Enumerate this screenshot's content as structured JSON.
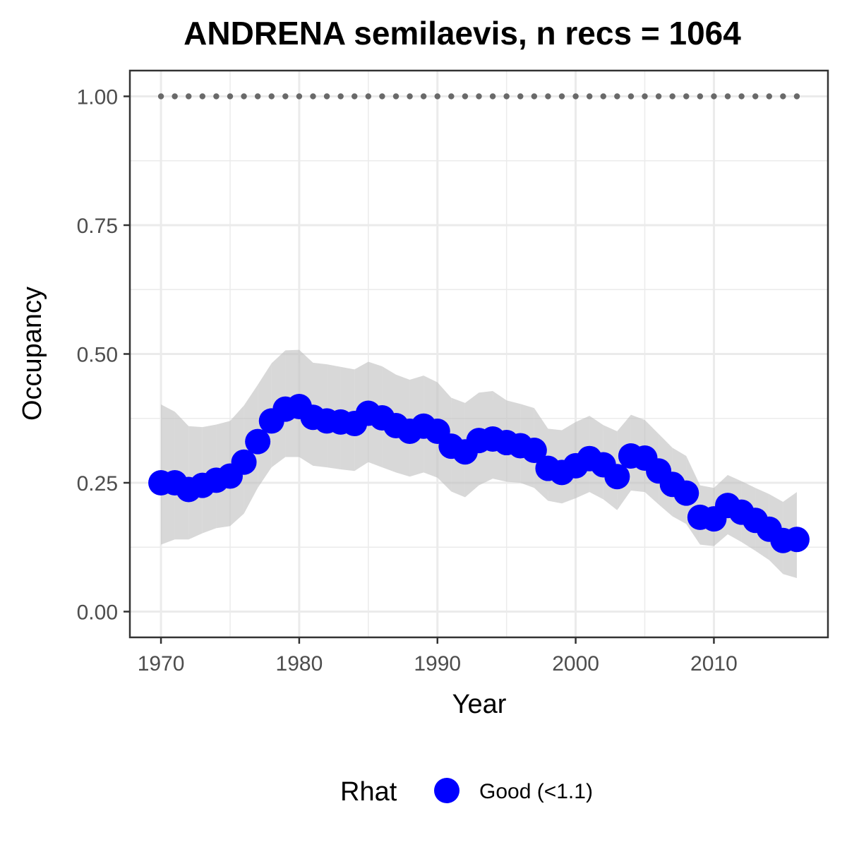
{
  "chart_data": {
    "type": "line",
    "title": "ANDRENA semilaevis, n recs = 1064",
    "xlabel": "Year",
    "ylabel": "Occupancy",
    "xlim": [
      1967.75,
      2018.25
    ],
    "ylim": [
      -0.05,
      1.05
    ],
    "x_ticks": [
      1970,
      1980,
      1990,
      2000,
      2010
    ],
    "x_tick_labels": [
      "1970",
      "1980",
      "1990",
      "2000",
      "2010"
    ],
    "y_ticks": [
      0,
      0.25,
      0.5,
      0.75,
      1.0
    ],
    "y_tick_labels": [
      "0.00",
      "0.25",
      "0.50",
      "0.75",
      "1.00"
    ],
    "grid": true,
    "x": [
      1970,
      1971,
      1972,
      1973,
      1974,
      1975,
      1976,
      1977,
      1978,
      1979,
      1980,
      1981,
      1982,
      1983,
      1984,
      1985,
      1986,
      1987,
      1988,
      1989,
      1990,
      1991,
      1992,
      1993,
      1994,
      1995,
      1996,
      1997,
      1998,
      1999,
      2000,
      2001,
      2002,
      2003,
      2004,
      2005,
      2006,
      2007,
      2008,
      2009,
      2010,
      2011,
      2012,
      2013,
      2014,
      2015,
      2016
    ],
    "series": [
      {
        "name": "Good (<1.1)",
        "color": "#0000ff",
        "values": [
          0.25,
          0.25,
          0.237,
          0.245,
          0.255,
          0.263,
          0.29,
          0.33,
          0.37,
          0.393,
          0.398,
          0.377,
          0.37,
          0.368,
          0.365,
          0.385,
          0.376,
          0.361,
          0.35,
          0.36,
          0.35,
          0.321,
          0.31,
          0.332,
          0.335,
          0.328,
          0.322,
          0.313,
          0.278,
          0.27,
          0.283,
          0.297,
          0.285,
          0.262,
          0.302,
          0.298,
          0.273,
          0.247,
          0.23,
          0.183,
          0.18,
          0.206,
          0.193,
          0.177,
          0.16,
          0.138,
          0.14
        ],
        "lower": [
          0.13,
          0.14,
          0.14,
          0.152,
          0.162,
          0.166,
          0.19,
          0.24,
          0.28,
          0.3,
          0.3,
          0.283,
          0.28,
          0.276,
          0.273,
          0.29,
          0.28,
          0.27,
          0.262,
          0.27,
          0.26,
          0.233,
          0.222,
          0.245,
          0.258,
          0.252,
          0.25,
          0.24,
          0.215,
          0.21,
          0.22,
          0.232,
          0.218,
          0.197,
          0.235,
          0.232,
          0.208,
          0.185,
          0.17,
          0.13,
          0.127,
          0.15,
          0.135,
          0.118,
          0.1,
          0.073,
          0.065
        ],
        "upper": [
          0.402,
          0.388,
          0.36,
          0.358,
          0.363,
          0.37,
          0.4,
          0.44,
          0.482,
          0.507,
          0.508,
          0.483,
          0.48,
          0.475,
          0.47,
          0.485,
          0.476,
          0.46,
          0.45,
          0.458,
          0.445,
          0.415,
          0.405,
          0.425,
          0.428,
          0.41,
          0.403,
          0.395,
          0.355,
          0.352,
          0.368,
          0.38,
          0.362,
          0.35,
          0.382,
          0.372,
          0.345,
          0.318,
          0.302,
          0.245,
          0.24,
          0.265,
          0.253,
          0.24,
          0.228,
          0.213,
          0.232
        ]
      },
      {
        "name": "",
        "color": "#696969",
        "style": "dotted",
        "values": [
          1,
          1,
          1,
          1,
          1,
          1,
          1,
          1,
          1,
          1,
          1,
          1,
          1,
          1,
          1,
          1,
          1,
          1,
          1,
          1,
          1,
          1,
          1,
          1,
          1,
          1,
          1,
          1,
          1,
          1,
          1,
          1,
          1,
          1,
          1,
          1,
          1,
          1,
          1,
          1,
          1,
          1,
          1,
          1,
          1,
          1,
          1
        ]
      }
    ],
    "legend": {
      "title": "Rhat",
      "position": "bottom",
      "entries": [
        {
          "label": "Good (<1.1)",
          "color": "#0000ff"
        }
      ]
    },
    "colors": {
      "ribbon": "#bebebe",
      "grid": "#ebebeb",
      "panel_border": "#333333"
    }
  }
}
